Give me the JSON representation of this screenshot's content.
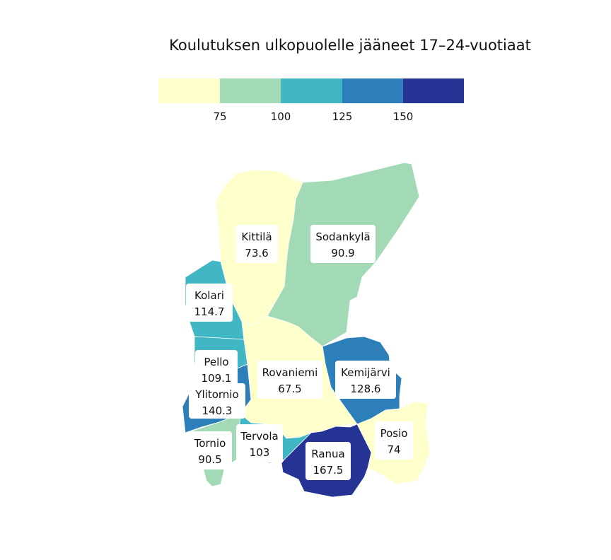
{
  "title": "Koulutuksen ulkopuolelle jääneet 17–24-vuotiaat",
  "legend": {
    "ticks": [
      "75",
      "100",
      "125",
      "150"
    ],
    "colors": [
      "#ffffcc",
      "#a1dab4",
      "#41b6c4",
      "#2c7fb8",
      "#253494"
    ]
  },
  "municipalities": [
    {
      "name": "Kittilä",
      "value": "73.6",
      "color": "#ffffcc"
    },
    {
      "name": "Sodankylä",
      "value": "90.9",
      "color": "#a1dab4"
    },
    {
      "name": "Kolari",
      "value": "114.7",
      "color": "#41b6c4"
    },
    {
      "name": "Pello",
      "value": "109.1",
      "color": "#41b6c4"
    },
    {
      "name": "Ylitornio",
      "value": "140.3",
      "color": "#2c7fb8"
    },
    {
      "name": "Rovaniemi",
      "value": "67.5",
      "color": "#ffffcc"
    },
    {
      "name": "Kemijärvi",
      "value": "128.6",
      "color": "#2c7fb8"
    },
    {
      "name": "Tornio",
      "value": "90.5",
      "color": "#a1dab4"
    },
    {
      "name": "Tervola",
      "value": "103",
      "color": "#41b6c4"
    },
    {
      "name": "Ranua",
      "value": "167.5",
      "color": "#253494"
    },
    {
      "name": "Posio",
      "value": "74",
      "color": "#ffffcc"
    }
  ]
}
